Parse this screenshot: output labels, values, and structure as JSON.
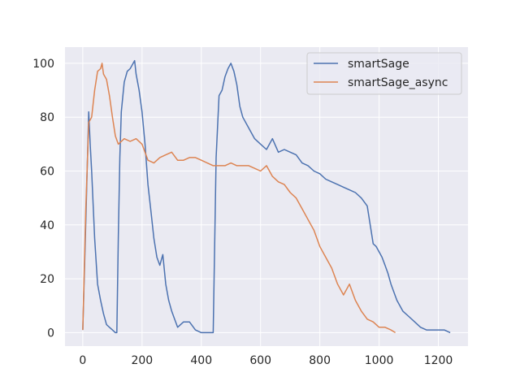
{
  "chart_data": {
    "type": "line",
    "title": "",
    "xlabel": "",
    "ylabel": "",
    "xlim": [
      -60,
      1300
    ],
    "ylim": [
      -5,
      106
    ],
    "xticks": [
      0,
      200,
      400,
      600,
      800,
      1000,
      1200
    ],
    "yticks": [
      0,
      20,
      40,
      60,
      80,
      100
    ],
    "grid": true,
    "legend_position": "top-right",
    "series": [
      {
        "name": "smartSage",
        "color": "#4c72b0",
        "x": [
          0,
          10,
          20,
          25,
          30,
          40,
          50,
          60,
          70,
          80,
          90,
          100,
          110,
          115,
          120,
          125,
          130,
          140,
          150,
          160,
          170,
          175,
          180,
          190,
          200,
          210,
          220,
          230,
          240,
          250,
          260,
          270,
          280,
          290,
          300,
          310,
          320,
          340,
          360,
          380,
          400,
          420,
          440,
          450,
          460,
          470,
          480,
          490,
          500,
          510,
          520,
          530,
          540,
          560,
          580,
          600,
          620,
          640,
          660,
          680,
          700,
          720,
          740,
          760,
          780,
          800,
          820,
          840,
          860,
          880,
          900,
          920,
          940,
          960,
          980,
          990,
          1000,
          1010,
          1020,
          1030,
          1040,
          1060,
          1080,
          1100,
          1120,
          1140,
          1160,
          1180,
          1200,
          1220,
          1240
        ],
        "y": [
          1,
          40,
          82,
          70,
          60,
          35,
          18,
          12,
          7,
          3,
          2,
          1,
          0,
          0,
          35,
          65,
          82,
          93,
          97,
          98,
          100,
          101,
          96,
          90,
          82,
          70,
          55,
          45,
          35,
          28,
          25,
          29,
          18,
          12,
          8,
          5,
          2,
          4,
          4,
          1,
          0,
          0,
          0,
          65,
          88,
          90,
          95,
          98,
          100,
          97,
          92,
          84,
          80,
          76,
          72,
          70,
          68,
          72,
          67,
          68,
          67,
          66,
          63,
          62,
          60,
          59,
          57,
          56,
          55,
          54,
          53,
          52,
          50,
          47,
          33,
          32,
          30,
          28,
          25,
          22,
          18,
          12,
          8,
          6,
          4,
          2,
          1,
          1,
          1,
          1,
          0
        ]
      },
      {
        "name": "smartSage_async",
        "color": "#dd8452",
        "x": [
          0,
          10,
          20,
          30,
          40,
          50,
          60,
          65,
          70,
          80,
          90,
          100,
          110,
          120,
          140,
          160,
          180,
          200,
          220,
          240,
          260,
          280,
          300,
          320,
          340,
          360,
          380,
          400,
          420,
          440,
          460,
          480,
          500,
          520,
          540,
          560,
          580,
          600,
          620,
          640,
          660,
          680,
          700,
          720,
          740,
          760,
          780,
          800,
          820,
          840,
          860,
          880,
          900,
          920,
          940,
          960,
          980,
          1000,
          1020,
          1040,
          1055
        ],
        "y": [
          1,
          45,
          78,
          80,
          90,
          97,
          98,
          100,
          96,
          94,
          88,
          80,
          73,
          70,
          72,
          71,
          72,
          70,
          64,
          63,
          65,
          66,
          67,
          64,
          64,
          65,
          65,
          64,
          63,
          62,
          62,
          62,
          63,
          62,
          62,
          62,
          61,
          60,
          62,
          58,
          56,
          55,
          52,
          50,
          46,
          42,
          38,
          32,
          28,
          24,
          18,
          14,
          18,
          12,
          8,
          5,
          4,
          2,
          2,
          1,
          0
        ]
      }
    ]
  }
}
